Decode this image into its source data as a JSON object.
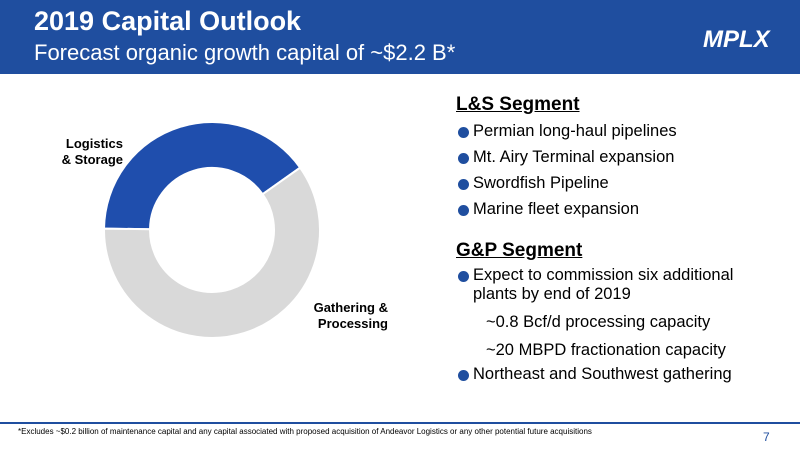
{
  "header": {
    "title": "2019 Capital Outlook",
    "subtitle": "Forecast organic growth capital of ~$2.2 B*",
    "logo_text": "MPLX"
  },
  "colors": {
    "brand_blue": "#1f4e9f",
    "donut_blue": "#1f4ead",
    "donut_gray": "#d9d9d9"
  },
  "chart_data": {
    "type": "pie",
    "donut": true,
    "slices": [
      {
        "label": "Logistics & Storage",
        "label_lines": [
          "Logistics",
          "& Storage"
        ],
        "value": 40
      },
      {
        "label": "Gathering & Processing",
        "label_lines": [
          "Gathering &",
          "Processing"
        ],
        "value": 60
      }
    ]
  },
  "segments": [
    {
      "heading": "L&S Segment",
      "bullets": [
        "Permian long-haul pipelines",
        "Mt. Airy Terminal expansion",
        "Swordfish Pipeline",
        "Marine fleet expansion"
      ]
    },
    {
      "heading": "G&P Segment",
      "bullets": [
        "Expect to commission six additional",
        "Northeast and Southwest gathering"
      ],
      "continuation": "plants by end of 2019",
      "sub_items": [
        "~0.8 Bcf/d processing capacity",
        "~20 MBPD fractionation capacity"
      ]
    }
  ],
  "footer": {
    "footnote": "*Excludes ~$0.2 billion of maintenance capital and any capital associated with proposed acquisition of Andeavor Logistics or any other potential future acquisitions",
    "page_number": "7"
  }
}
